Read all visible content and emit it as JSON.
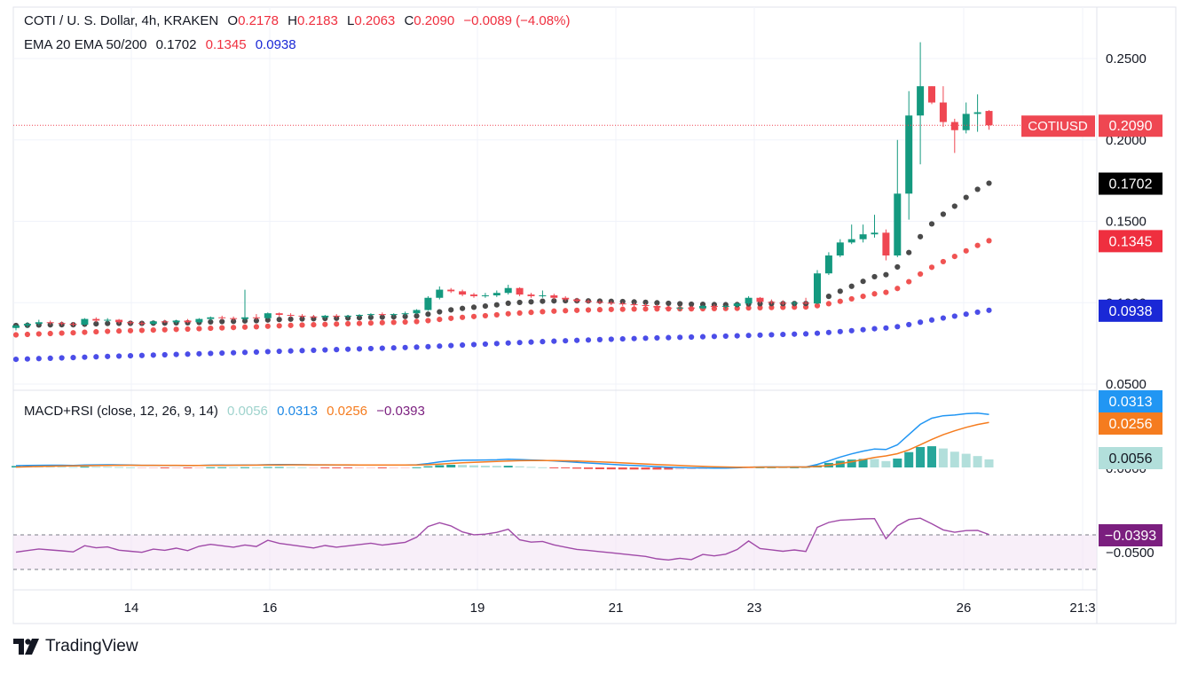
{
  "header": {
    "symbol": "COTI / U. S. Dollar, 4h, KRAKEN",
    "open_label": "O",
    "open": "0.2178",
    "high_label": "H",
    "high": "0.2183",
    "low_label": "L",
    "low": "0.2063",
    "close_label": "C",
    "close": "0.2090",
    "change": "−0.0089 (−4.08%)"
  },
  "ema_legend": {
    "label": "EMA 20 EMA 50/200",
    "ema20": "0.1702",
    "ema50": "0.1345",
    "ema200": "0.0938"
  },
  "macd_legend": {
    "label": "MACD+RSI (close, 12, 26, 9, 14)",
    "hist": "0.0056",
    "macd": "0.0313",
    "signal": "0.0256",
    "rsi": "−0.0393"
  },
  "brand": "TradingView",
  "colors": {
    "up": "#14997f",
    "down": "#ef4752",
    "ema20": "#4a4a4a",
    "ema50": "#f05352",
    "ema200": "#4b4de8",
    "macd": "#2196f3",
    "signal": "#f57c1f",
    "rsi": "#a04aa8",
    "hist_strong": "#26a69a",
    "hist_weak": "#b2dfdb"
  },
  "chart_data": [
    {
      "type": "candlestick",
      "title": "COTI / U. S. Dollar, 4h, KRAKEN",
      "x_ticks": [
        "14",
        "16",
        "19",
        "21",
        "23",
        "26",
        "21:3"
      ],
      "y_ticks": [
        "0.2500",
        "0.2000",
        "0.1500",
        "0.1000",
        "0.0500"
      ],
      "ylim": [
        0.045,
        0.27
      ],
      "price_labels": [
        {
          "name": "COTIUSD",
          "value": "0.2090",
          "color": "#ef4752"
        },
        {
          "name": "EMA 20",
          "value": "0.1702",
          "color": "#000000"
        },
        {
          "name": "EMA 50",
          "value": "0.1345",
          "color": "#ef2f3f"
        },
        {
          "name": "EMA 200",
          "value": "0.0938",
          "color": "#1a28d6"
        }
      ],
      "candles": [
        [
          0.0845,
          0.0865,
          0.083,
          0.086
        ],
        [
          0.086,
          0.088,
          0.0845,
          0.087
        ],
        [
          0.087,
          0.0895,
          0.086,
          0.088
        ],
        [
          0.088,
          0.089,
          0.0865,
          0.0875
        ],
        [
          0.0875,
          0.0885,
          0.086,
          0.087
        ],
        [
          0.087,
          0.088,
          0.0855,
          0.0865
        ],
        [
          0.0865,
          0.0905,
          0.086,
          0.09
        ],
        [
          0.09,
          0.091,
          0.088,
          0.089
        ],
        [
          0.089,
          0.0905,
          0.088,
          0.0895
        ],
        [
          0.0895,
          0.09,
          0.087,
          0.088
        ],
        [
          0.088,
          0.089,
          0.0865,
          0.0875
        ],
        [
          0.0875,
          0.0885,
          0.086,
          0.087
        ],
        [
          0.087,
          0.089,
          0.0865,
          0.0885
        ],
        [
          0.0885,
          0.0895,
          0.0875,
          0.088
        ],
        [
          0.088,
          0.0895,
          0.087,
          0.089
        ],
        [
          0.089,
          0.09,
          0.0875,
          0.088
        ],
        [
          0.088,
          0.0905,
          0.0875,
          0.09
        ],
        [
          0.09,
          0.0915,
          0.089,
          0.091
        ],
        [
          0.091,
          0.092,
          0.0895,
          0.0905
        ],
        [
          0.0905,
          0.0915,
          0.089,
          0.09
        ],
        [
          0.09,
          0.108,
          0.089,
          0.091
        ],
        [
          0.091,
          0.093,
          0.0895,
          0.0905
        ],
        [
          0.0905,
          0.094,
          0.09,
          0.0935
        ],
        [
          0.0935,
          0.094,
          0.0915,
          0.0925
        ],
        [
          0.0925,
          0.0935,
          0.091,
          0.092
        ],
        [
          0.092,
          0.093,
          0.0905,
          0.0915
        ],
        [
          0.0915,
          0.0925,
          0.0905,
          0.091
        ],
        [
          0.091,
          0.0925,
          0.09,
          0.092
        ],
        [
          0.092,
          0.093,
          0.0905,
          0.0915
        ],
        [
          0.0915,
          0.0925,
          0.0905,
          0.092
        ],
        [
          0.092,
          0.093,
          0.091,
          0.0925
        ],
        [
          0.0925,
          0.0935,
          0.0915,
          0.093
        ],
        [
          0.093,
          0.094,
          0.092,
          0.0925
        ],
        [
          0.0925,
          0.0935,
          0.0915,
          0.093
        ],
        [
          0.093,
          0.0945,
          0.092,
          0.0935
        ],
        [
          0.0935,
          0.096,
          0.093,
          0.0955
        ],
        [
          0.0955,
          0.104,
          0.095,
          0.103
        ],
        [
          0.103,
          0.11,
          0.102,
          0.108
        ],
        [
          0.108,
          0.109,
          0.106,
          0.107
        ],
        [
          0.107,
          0.108,
          0.104,
          0.105
        ],
        [
          0.105,
          0.106,
          0.103,
          0.104
        ],
        [
          0.104,
          0.106,
          0.103,
          0.1045
        ],
        [
          0.1045,
          0.1075,
          0.1035,
          0.106
        ],
        [
          0.106,
          0.111,
          0.105,
          0.109
        ],
        [
          0.109,
          0.1095,
          0.104,
          0.105
        ],
        [
          0.105,
          0.106,
          0.103,
          0.104
        ],
        [
          0.104,
          0.1075,
          0.103,
          0.1045
        ],
        [
          0.1045,
          0.1055,
          0.102,
          0.103
        ],
        [
          0.103,
          0.104,
          0.101,
          0.102
        ],
        [
          0.102,
          0.103,
          0.1,
          0.101
        ],
        [
          0.101,
          0.102,
          0.0995,
          0.1005
        ],
        [
          0.1005,
          0.1015,
          0.099,
          0.1
        ],
        [
          0.1,
          0.101,
          0.0985,
          0.0995
        ],
        [
          0.0995,
          0.1005,
          0.098,
          0.099
        ],
        [
          0.099,
          0.1,
          0.0975,
          0.0985
        ],
        [
          0.0985,
          0.0995,
          0.097,
          0.098
        ],
        [
          0.098,
          0.099,
          0.096,
          0.097
        ],
        [
          0.097,
          0.098,
          0.0955,
          0.0965
        ],
        [
          0.0965,
          0.0975,
          0.095,
          0.097
        ],
        [
          0.097,
          0.098,
          0.0955,
          0.0965
        ],
        [
          0.0965,
          0.0985,
          0.096,
          0.098
        ],
        [
          0.098,
          0.099,
          0.0965,
          0.0975
        ],
        [
          0.0975,
          0.0985,
          0.096,
          0.098
        ],
        [
          0.098,
          0.1,
          0.097,
          0.0995
        ],
        [
          0.0995,
          0.104,
          0.0985,
          0.103
        ],
        [
          0.103,
          0.1035,
          0.0995,
          0.1005
        ],
        [
          0.1005,
          0.102,
          0.099,
          0.1
        ],
        [
          0.1,
          0.1015,
          0.0985,
          0.0995
        ],
        [
          0.0995,
          0.101,
          0.098,
          0.1
        ],
        [
          0.1,
          0.103,
          0.099,
          0.0995
        ],
        [
          0.0995,
          0.12,
          0.099,
          0.118
        ],
        [
          0.118,
          0.131,
          0.117,
          0.129
        ],
        [
          0.129,
          0.139,
          0.128,
          0.137
        ],
        [
          0.137,
          0.148,
          0.136,
          0.139
        ],
        [
          0.139,
          0.148,
          0.137,
          0.142
        ],
        [
          0.142,
          0.154,
          0.14,
          0.143
        ],
        [
          0.143,
          0.145,
          0.126,
          0.129
        ],
        [
          0.129,
          0.2,
          0.128,
          0.167
        ],
        [
          0.167,
          0.23,
          0.151,
          0.215
        ],
        [
          0.215,
          0.26,
          0.185,
          0.233
        ],
        [
          0.233,
          0.233,
          0.222,
          0.223
        ],
        [
          0.223,
          0.233,
          0.208,
          0.211
        ],
        [
          0.211,
          0.213,
          0.192,
          0.206
        ],
        [
          0.206,
          0.223,
          0.204,
          0.216
        ],
        [
          0.216,
          0.228,
          0.205,
          0.217
        ],
        [
          0.2178,
          0.2183,
          0.2063,
          0.209
        ]
      ]
    },
    {
      "type": "line",
      "title": "MACD+RSI (close, 12, 26, 9, 14)",
      "series": [
        {
          "name": "Histogram",
          "last": "0.0056"
        },
        {
          "name": "MACD",
          "last": "0.0313"
        },
        {
          "name": "Signal",
          "last": "0.0256"
        },
        {
          "name": "RSI",
          "last": "−0.0393"
        }
      ],
      "y_ticks": [
        "0.0000",
        "−0.0500"
      ]
    }
  ]
}
